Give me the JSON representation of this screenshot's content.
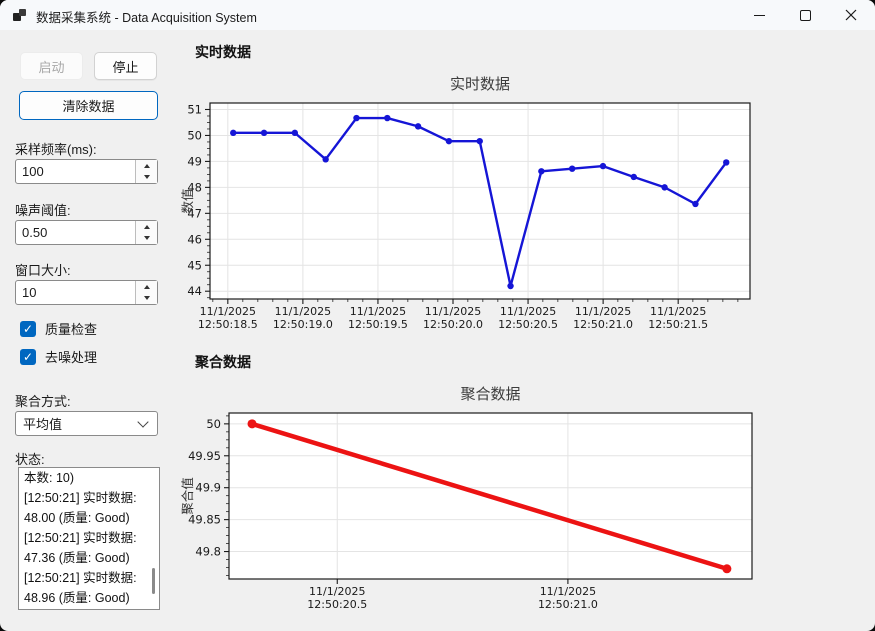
{
  "window": {
    "title": "数据采集系统 - Data Acquisition System"
  },
  "sidebar": {
    "start_label": "启动",
    "stop_label": "停止",
    "clear_label": "清除数据",
    "sample_rate_label": "采样频率(ms):",
    "sample_rate_value": "100",
    "noise_label": "噪声阈值:",
    "noise_value": "0.50",
    "window_label": "窗口大小:",
    "window_value": "10",
    "quality_check_label": "质量检查",
    "quality_check_checked": "✓",
    "denoise_label": "去噪处理",
    "denoise_checked": "✓",
    "aggregation_label": "聚合方式:",
    "aggregation_value": "平均值",
    "status_label": "状态:",
    "status_lines": [
      "本数: 10)",
      "[12:50:21] 实时数据:",
      "48.00 (质量: Good)",
      "[12:50:21] 实时数据:",
      "47.36 (质量: Good)",
      "[12:50:21] 实时数据:",
      "48.96 (质量: Good)"
    ]
  },
  "main": {
    "realtime_header": "实时数据",
    "aggregated_header": "聚合数据"
  },
  "colors": {
    "accent": "#0067c0",
    "realtime_line": "#1515d6",
    "aggregated_line": "#ec1313"
  },
  "chart_data": [
    {
      "type": "line",
      "title": "实时数据",
      "ylabel": "数值",
      "ylim": [
        43.7,
        51.25
      ],
      "grid": true,
      "legend": "none",
      "yticks": [
        {
          "value": 44,
          "label": "44"
        },
        {
          "value": 45,
          "label": "45"
        },
        {
          "value": 46,
          "label": "46"
        },
        {
          "value": 47,
          "label": "47"
        },
        {
          "value": 48,
          "label": "48"
        },
        {
          "value": 49,
          "label": "49"
        },
        {
          "value": 50,
          "label": "50"
        },
        {
          "value": 51,
          "label": "51"
        }
      ],
      "y_minor_step": 0.25,
      "x_minor_frac_step": 0.02778,
      "xticks": [
        {
          "frac": 0.033,
          "line1": "11/1/2025",
          "line2": "12:50:18.5"
        },
        {
          "frac": 0.172,
          "line1": "11/1/2025",
          "line2": "12:50:19.0"
        },
        {
          "frac": 0.311,
          "line1": "11/1/2025",
          "line2": "12:50:19.5"
        },
        {
          "frac": 0.45,
          "line1": "11/1/2025",
          "line2": "12:50:20.0"
        },
        {
          "frac": 0.589,
          "line1": "11/1/2025",
          "line2": "12:50:20.5"
        },
        {
          "frac": 0.728,
          "line1": "11/1/2025",
          "line2": "12:50:21.0"
        },
        {
          "frac": 0.867,
          "line1": "11/1/2025",
          "line2": "12:50:21.5"
        }
      ],
      "series": [
        {
          "name": "realtime",
          "color": "#1515d6",
          "x_start_frac": 0.043,
          "x_end_frac": 0.956,
          "values": [
            50.1,
            50.1,
            50.1,
            49.08,
            50.67,
            50.67,
            50.35,
            49.78,
            49.78,
            44.2,
            48.62,
            48.72,
            48.82,
            48.4,
            48.0,
            47.36,
            48.96
          ]
        }
      ]
    },
    {
      "type": "line",
      "title": "聚合数据",
      "ylabel": "聚合值",
      "ylim": [
        49.757,
        50.017
      ],
      "grid": true,
      "legend": "none",
      "yticks": [
        {
          "value": 50,
          "label": "50"
        },
        {
          "value": 49.95,
          "label": "49.95"
        },
        {
          "value": 49.9,
          "label": "49.9"
        },
        {
          "value": 49.85,
          "label": "49.85"
        },
        {
          "value": 49.8,
          "label": "49.8"
        }
      ],
      "y_minor_step": 0.0125,
      "xticks": [
        {
          "frac": 0.207,
          "line1": "11/1/2025",
          "line2": "12:50:20.5"
        },
        {
          "frac": 0.648,
          "line1": "11/1/2025",
          "line2": "12:50:21.0"
        }
      ],
      "series": [
        {
          "name": "aggregated",
          "color": "#ec1313",
          "x_start_frac": 0.044,
          "x_end_frac": 0.952,
          "values": [
            50.0,
            49.773
          ]
        }
      ]
    }
  ]
}
